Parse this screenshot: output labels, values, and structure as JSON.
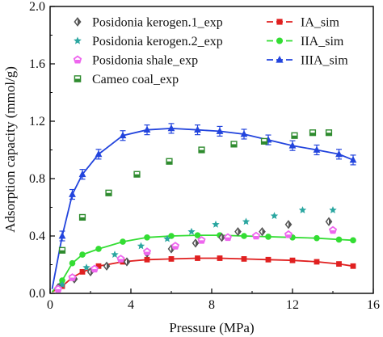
{
  "chart_data": {
    "type": "scatter",
    "title": "",
    "xlabel": "Pressure (MPa)",
    "ylabel": "Adsorption capacity (mmol/g)",
    "xlim": [
      0,
      16
    ],
    "ylim": [
      0,
      2.0
    ],
    "xticks": [
      "0",
      "4",
      "8",
      "12",
      "16"
    ],
    "yticks": [
      "0.0",
      "0.4",
      "0.8",
      "1.2",
      "1.6",
      "2.0"
    ],
    "grid": false,
    "legend_position": "top",
    "series": [
      {
        "name": "Posidonia kerogen.1_exp",
        "kind": "exp",
        "marker": "diamond",
        "color": "#555555",
        "x": [
          0.4,
          1.2,
          2.0,
          2.8,
          3.8,
          4.8,
          6.0,
          7.2,
          8.5,
          9.3,
          10.5,
          11.8,
          13.8
        ],
        "y": [
          0.04,
          0.1,
          0.15,
          0.19,
          0.22,
          0.28,
          0.31,
          0.35,
          0.39,
          0.43,
          0.43,
          0.48,
          0.5
        ]
      },
      {
        "name": "Posidonia kerogen.2_exp",
        "kind": "exp",
        "marker": "star",
        "color": "#2aa6a0",
        "x": [
          0.6,
          1.8,
          3.2,
          4.5,
          5.8,
          7.0,
          8.2,
          9.7,
          11.1,
          12.5,
          14.0
        ],
        "y": [
          0.06,
          0.18,
          0.27,
          0.33,
          0.38,
          0.43,
          0.48,
          0.5,
          0.54,
          0.58,
          0.58
        ]
      },
      {
        "name": "Posidonia shale_exp",
        "kind": "exp",
        "marker": "pentagon",
        "color": "#ee66ee",
        "x": [
          0.4,
          1.1,
          2.2,
          3.5,
          4.8,
          6.2,
          7.5,
          8.8,
          10.2,
          11.8,
          14.0
        ],
        "y": [
          0.03,
          0.11,
          0.17,
          0.24,
          0.29,
          0.33,
          0.37,
          0.39,
          0.4,
          0.41,
          0.44
        ]
      },
      {
        "name": "Cameo coal_exp",
        "kind": "exp",
        "marker": "square-half",
        "color": "#2e8b2e",
        "x": [
          0.6,
          1.6,
          2.9,
          4.3,
          5.9,
          7.5,
          9.1,
          10.6,
          12.1,
          13.0,
          13.8
        ],
        "y": [
          0.3,
          0.53,
          0.7,
          0.83,
          0.92,
          1.0,
          1.04,
          1.06,
          1.1,
          1.12,
          1.12
        ]
      },
      {
        "name": "IA_sim",
        "kind": "sim",
        "marker": "square",
        "line_style": "solid",
        "color": "#e02020",
        "x": [
          0.1,
          0.6,
          1.1,
          1.6,
          2.4,
          3.6,
          4.8,
          6.0,
          7.3,
          8.4,
          9.6,
          10.8,
          12.0,
          13.2,
          14.3,
          15.0
        ],
        "y": [
          0.01,
          0.05,
          0.11,
          0.15,
          0.19,
          0.22,
          0.235,
          0.24,
          0.245,
          0.245,
          0.24,
          0.235,
          0.23,
          0.22,
          0.205,
          0.19
        ]
      },
      {
        "name": "IIA_sim",
        "kind": "sim",
        "marker": "circle",
        "line_style": "solid",
        "color": "#33dd33",
        "x": [
          0.1,
          0.6,
          1.1,
          1.6,
          2.4,
          3.6,
          4.8,
          6.0,
          7.3,
          8.4,
          9.6,
          10.8,
          12.0,
          13.2,
          14.3,
          15.0
        ],
        "y": [
          0.01,
          0.09,
          0.21,
          0.27,
          0.31,
          0.36,
          0.39,
          0.4,
          0.405,
          0.405,
          0.4,
          0.395,
          0.39,
          0.385,
          0.375,
          0.37
        ]
      },
      {
        "name": "IIIA_sim",
        "kind": "sim",
        "marker": "triangle",
        "line_style": "solid",
        "color": "#2244dd",
        "error_bars": true,
        "x": [
          0.1,
          0.6,
          1.1,
          1.6,
          2.4,
          3.6,
          4.8,
          6.0,
          7.3,
          8.4,
          9.6,
          10.8,
          12.0,
          13.2,
          14.3,
          15.0
        ],
        "y": [
          0.03,
          0.4,
          0.69,
          0.83,
          0.97,
          1.1,
          1.14,
          1.15,
          1.14,
          1.13,
          1.11,
          1.07,
          1.03,
          1.0,
          0.97,
          0.93
        ]
      }
    ]
  }
}
